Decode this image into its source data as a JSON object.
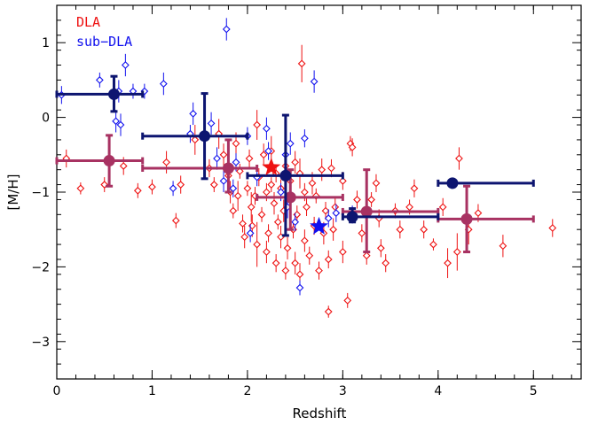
{
  "chart_data": {
    "type": "scatter",
    "xlabel": "Redshift",
    "ylabel": "[M/H]",
    "xlim": [
      0,
      5.5
    ],
    "ylim": [
      -3.5,
      1.5
    ],
    "x_ticks": [
      "0",
      "1",
      "2",
      "3",
      "4",
      "5"
    ],
    "y_ticks": [
      "1",
      "0",
      "−1",
      "−2",
      "−3"
    ],
    "legend": [
      {
        "label": "DLA",
        "color": "#ee1111"
      },
      {
        "label": "sub−DLA",
        "color": "#1111ee"
      }
    ],
    "colors": {
      "dla": "#ee1111",
      "subdla": "#1111ee",
      "dla_binned": "#a83262",
      "subdla_binned": "#0d1570"
    },
    "dla_points": [
      [
        0.1,
        -0.55,
        0.12
      ],
      [
        0.25,
        -0.95,
        0.08
      ],
      [
        0.5,
        -0.9,
        0.1
      ],
      [
        0.7,
        -0.65,
        0.12
      ],
      [
        0.85,
        -0.98,
        0.1
      ],
      [
        1.0,
        -0.93,
        0.1
      ],
      [
        1.15,
        -0.6,
        0.15
      ],
      [
        1.25,
        -1.38,
        0.1
      ],
      [
        1.3,
        -0.9,
        0.12
      ],
      [
        1.45,
        -0.3,
        0.2
      ],
      [
        1.6,
        -0.68,
        0.12
      ],
      [
        1.65,
        -0.9,
        0.1
      ],
      [
        1.7,
        -0.22,
        0.2
      ],
      [
        1.75,
        -0.5,
        0.15
      ],
      [
        1.8,
        -0.78,
        0.12
      ],
      [
        1.82,
        -1.0,
        0.15
      ],
      [
        1.85,
        -1.25,
        0.1
      ],
      [
        1.88,
        -0.35,
        0.15
      ],
      [
        1.9,
        -1.05,
        0.2
      ],
      [
        1.92,
        -0.72,
        0.1
      ],
      [
        1.95,
        -1.42,
        0.12
      ],
      [
        1.97,
        -1.6,
        0.15
      ],
      [
        2.0,
        -0.95,
        0.1
      ],
      [
        2.02,
        -0.55,
        0.12
      ],
      [
        2.04,
        -1.2,
        0.2
      ],
      [
        2.05,
        -1.45,
        0.15
      ],
      [
        2.08,
        -1.05,
        0.12
      ],
      [
        2.1,
        -0.1,
        0.2
      ],
      [
        2.1,
        -1.7,
        0.3
      ],
      [
        2.12,
        -0.8,
        0.12
      ],
      [
        2.15,
        -1.3,
        0.1
      ],
      [
        2.17,
        -0.5,
        0.15
      ],
      [
        2.2,
        -1.0,
        0.12
      ],
      [
        2.2,
        -1.8,
        0.15
      ],
      [
        2.22,
        -1.55,
        0.12
      ],
      [
        2.25,
        -0.9,
        0.1
      ],
      [
        2.25,
        -0.45,
        0.2
      ],
      [
        2.28,
        -1.15,
        0.15
      ],
      [
        2.3,
        -1.95,
        0.12
      ],
      [
        2.3,
        -0.75,
        0.12
      ],
      [
        2.32,
        -1.4,
        0.1
      ],
      [
        2.35,
        -1.6,
        0.15
      ],
      [
        2.35,
        -0.95,
        0.12
      ],
      [
        2.38,
        -1.25,
        0.15
      ],
      [
        2.4,
        -0.65,
        0.12
      ],
      [
        2.4,
        -2.05,
        0.12
      ],
      [
        2.42,
        -1.75,
        0.15
      ],
      [
        2.45,
        -1.1,
        0.12
      ],
      [
        2.45,
        -0.85,
        0.15
      ],
      [
        2.48,
        -1.5,
        0.12
      ],
      [
        2.5,
        -0.6,
        0.15
      ],
      [
        2.5,
        -1.95,
        0.15
      ],
      [
        2.52,
        -1.3,
        0.12
      ],
      [
        2.55,
        -2.1,
        0.15
      ],
      [
        2.55,
        -0.75,
        0.2
      ],
      [
        2.57,
        0.72,
        0.25
      ],
      [
        2.6,
        -1.0,
        0.12
      ],
      [
        2.6,
        -1.65,
        0.15
      ],
      [
        2.62,
        -1.2,
        0.12
      ],
      [
        2.65,
        -1.85,
        0.12
      ],
      [
        2.68,
        -0.88,
        0.15
      ],
      [
        2.7,
        -1.45,
        0.12
      ],
      [
        2.72,
        -1.05,
        0.1
      ],
      [
        2.75,
        -2.05,
        0.12
      ],
      [
        2.78,
        -0.7,
        0.15
      ],
      [
        2.8,
        -1.55,
        0.15
      ],
      [
        2.82,
        -1.25,
        0.12
      ],
      [
        2.85,
        -2.6,
        0.08
      ],
      [
        2.85,
        -1.9,
        0.12
      ],
      [
        2.88,
        -0.68,
        0.12
      ],
      [
        2.9,
        -1.5,
        0.15
      ],
      [
        2.92,
        -1.2,
        0.12
      ],
      [
        3.0,
        -0.85,
        0.12
      ],
      [
        3.0,
        -1.8,
        0.15
      ],
      [
        3.05,
        -2.45,
        0.1
      ],
      [
        3.08,
        -0.35,
        0.1
      ],
      [
        3.1,
        -0.4,
        0.12
      ],
      [
        3.15,
        -1.1,
        0.12
      ],
      [
        3.2,
        -1.55,
        0.12
      ],
      [
        3.25,
        -1.85,
        0.12
      ],
      [
        3.3,
        -1.1,
        0.1
      ],
      [
        3.35,
        -0.88,
        0.12
      ],
      [
        3.38,
        -1.35,
        0.12
      ],
      [
        3.4,
        -1.75,
        0.12
      ],
      [
        3.45,
        -1.95,
        0.12
      ],
      [
        3.55,
        -1.25,
        0.1
      ],
      [
        3.6,
        -1.5,
        0.12
      ],
      [
        3.7,
        -1.2,
        0.1
      ],
      [
        3.75,
        -0.95,
        0.12
      ],
      [
        3.85,
        -1.5,
        0.12
      ],
      [
        3.95,
        -1.7,
        0.08
      ],
      [
        4.05,
        -1.2,
        0.12
      ],
      [
        4.1,
        -1.95,
        0.2
      ],
      [
        4.2,
        -1.8,
        0.25
      ],
      [
        4.22,
        -0.55,
        0.15
      ],
      [
        4.32,
        -1.5,
        0.2
      ],
      [
        4.42,
        -1.28,
        0.12
      ],
      [
        4.68,
        -1.72,
        0.15
      ],
      [
        5.2,
        -1.48,
        0.12
      ]
    ],
    "subdla_points": [
      [
        0.05,
        0.3,
        0.12
      ],
      [
        0.45,
        0.5,
        0.1
      ],
      [
        0.62,
        -0.05,
        0.15
      ],
      [
        0.65,
        0.35,
        0.15
      ],
      [
        0.67,
        -0.1,
        0.15
      ],
      [
        0.72,
        0.7,
        0.15
      ],
      [
        0.8,
        0.35,
        0.1
      ],
      [
        0.92,
        0.35,
        0.1
      ],
      [
        1.12,
        0.45,
        0.15
      ],
      [
        1.22,
        -0.95,
        0.1
      ],
      [
        1.4,
        -0.22,
        0.12
      ],
      [
        1.43,
        0.05,
        0.15
      ],
      [
        1.62,
        -0.08,
        0.15
      ],
      [
        1.68,
        -0.55,
        0.15
      ],
      [
        1.75,
        -0.85,
        0.15
      ],
      [
        1.78,
        1.18,
        0.15
      ],
      [
        1.85,
        -0.95,
        0.12
      ],
      [
        1.88,
        -0.6,
        0.12
      ],
      [
        2.0,
        -0.25,
        0.12
      ],
      [
        2.03,
        -1.55,
        0.12
      ],
      [
        2.1,
        -0.8,
        0.12
      ],
      [
        2.2,
        -0.15,
        0.15
      ],
      [
        2.22,
        -0.45,
        0.12
      ],
      [
        2.35,
        -1.0,
        0.12
      ],
      [
        2.4,
        -0.5,
        0.12
      ],
      [
        2.42,
        -1.2,
        0.15
      ],
      [
        2.45,
        -0.35,
        0.15
      ],
      [
        2.5,
        -1.4,
        0.12
      ],
      [
        2.55,
        -2.28,
        0.1
      ],
      [
        2.6,
        -0.28,
        0.12
      ],
      [
        2.7,
        0.48,
        0.15
      ],
      [
        2.85,
        -1.35,
        0.12
      ],
      [
        2.93,
        -1.28,
        0.12
      ],
      [
        3.1,
        -1.3,
        0.12
      ]
    ],
    "dla_binned": [
      {
        "x": 0.55,
        "y": -0.58,
        "xlo": 0.0,
        "xhi": 0.9,
        "ylo": -0.92,
        "yhi": -0.24
      },
      {
        "x": 1.8,
        "y": -0.68,
        "xlo": 0.9,
        "xhi": 2.1,
        "ylo": -1.0,
        "yhi": -0.3
      },
      {
        "x": 2.45,
        "y": -1.07,
        "xlo": 2.1,
        "xhi": 3.0,
        "ylo": -1.5,
        "yhi": -0.7
      },
      {
        "x": 3.25,
        "y": -1.26,
        "xlo": 3.0,
        "xhi": 4.0,
        "ylo": -1.8,
        "yhi": -0.7
      },
      {
        "x": 4.3,
        "y": -1.36,
        "xlo": 4.0,
        "xhi": 5.0,
        "ylo": -1.8,
        "yhi": -0.92
      }
    ],
    "subdla_binned": [
      {
        "x": 0.6,
        "y": 0.31,
        "xlo": 0.0,
        "xhi": 0.9,
        "ylo": 0.08,
        "yhi": 0.55
      },
      {
        "x": 1.55,
        "y": -0.25,
        "xlo": 0.9,
        "xhi": 2.0,
        "ylo": -0.82,
        "yhi": 0.32
      },
      {
        "x": 2.4,
        "y": -0.78,
        "xlo": 2.0,
        "xhi": 3.0,
        "ylo": -1.58,
        "yhi": 0.03
      },
      {
        "x": 3.1,
        "y": -1.33,
        "xlo": 3.0,
        "xhi": 4.0,
        "ylo": -1.4,
        "yhi": -1.22
      },
      {
        "x": 4.15,
        "y": -0.88,
        "xlo": 4.0,
        "xhi": 5.0,
        "ylo": -0.92,
        "yhi": -0.84
      }
    ],
    "stars": [
      {
        "series": "DLA",
        "x": 2.25,
        "y": -0.67,
        "color": "#ee1111"
      },
      {
        "series": "sub-DLA",
        "x": 2.75,
        "y": -1.46,
        "color": "#1111ee"
      }
    ]
  }
}
